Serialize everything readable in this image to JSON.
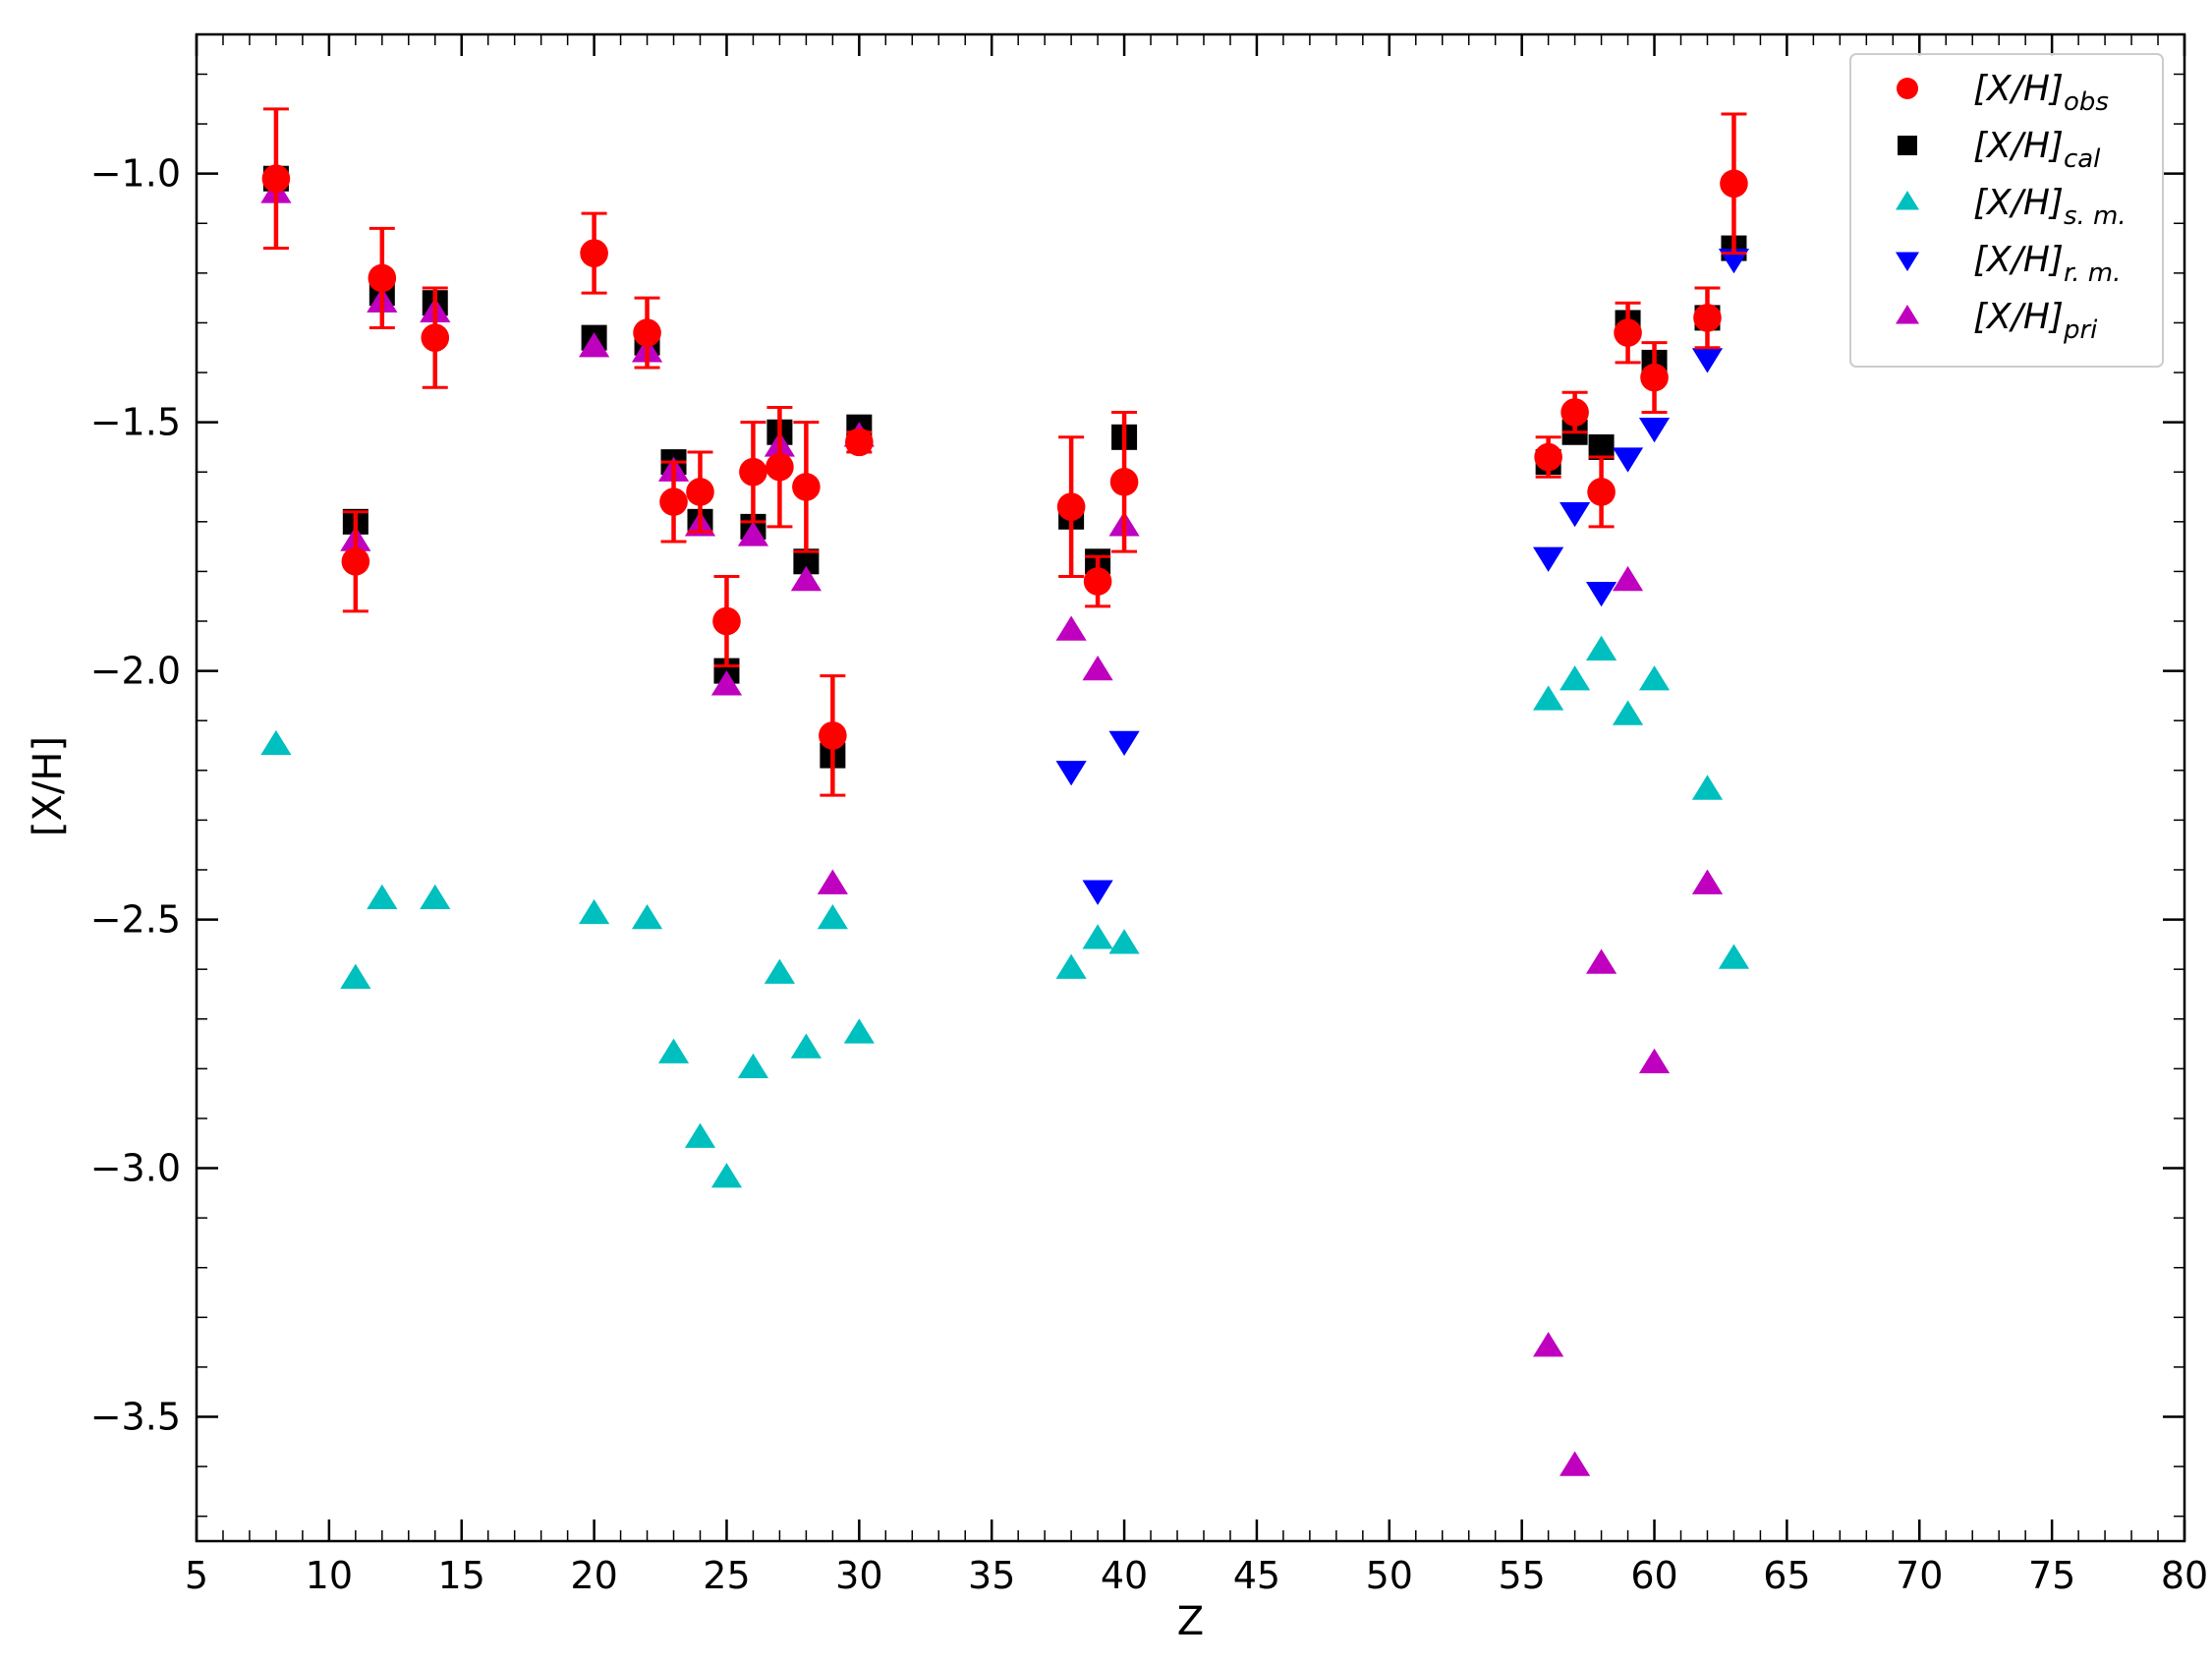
{
  "chart_data": {
    "type": "scatter",
    "xlabel": "Z",
    "ylabel": "[X/H]",
    "xlim": [
      5,
      80
    ],
    "ylim": [
      -3.75,
      -0.72
    ],
    "x_ticks": [
      5,
      10,
      15,
      20,
      25,
      30,
      35,
      40,
      45,
      50,
      55,
      60,
      65,
      70,
      75,
      80
    ],
    "y_ticks": [
      -1.0,
      -1.5,
      -2.0,
      -2.5,
      -3.0,
      -3.5
    ],
    "y_tick_labels": [
      "−1.0",
      "−1.5",
      "−2.0",
      "−2.5",
      "−3.0",
      "−3.5"
    ],
    "legend_position": "top-right",
    "grid": false,
    "series": [
      {
        "key": "cal",
        "name_main": "[X/H]",
        "name_sub": "cal",
        "marker": "square",
        "color": "#000000",
        "points": [
          [
            8,
            -1.01
          ],
          [
            11,
            -1.7
          ],
          [
            12,
            -1.24
          ],
          [
            14,
            -1.26
          ],
          [
            20,
            -1.33
          ],
          [
            22,
            -1.34
          ],
          [
            23,
            -1.58
          ],
          [
            24,
            -1.7
          ],
          [
            25,
            -2.0
          ],
          [
            26,
            -1.71
          ],
          [
            27,
            -1.52
          ],
          [
            28,
            -1.78
          ],
          [
            29,
            -2.17
          ],
          [
            30,
            -1.51
          ],
          [
            38,
            -1.69
          ],
          [
            39,
            -1.78
          ],
          [
            40,
            -1.53
          ],
          [
            56,
            -1.58
          ],
          [
            57,
            -1.52
          ],
          [
            58,
            -1.55
          ],
          [
            59,
            -1.3
          ],
          [
            60,
            -1.38
          ],
          [
            62,
            -1.29
          ],
          [
            63,
            -1.15
          ]
        ]
      },
      {
        "key": "sm",
        "name_main": "[X/H]",
        "name_sub": "s. m.",
        "marker": "triangle-up",
        "color": "#00bfbf",
        "points": [
          [
            8,
            -2.15
          ],
          [
            11,
            -2.62
          ],
          [
            12,
            -2.46
          ],
          [
            14,
            -2.46
          ],
          [
            20,
            -2.49
          ],
          [
            22,
            -2.5
          ],
          [
            23,
            -2.77
          ],
          [
            24,
            -2.94
          ],
          [
            25,
            -3.02
          ],
          [
            26,
            -2.8
          ],
          [
            27,
            -2.61
          ],
          [
            28,
            -2.76
          ],
          [
            29,
            -2.5
          ],
          [
            30,
            -2.73
          ],
          [
            38,
            -2.6
          ],
          [
            39,
            -2.54
          ],
          [
            40,
            -2.55
          ],
          [
            56,
            -2.06
          ],
          [
            57,
            -2.02
          ],
          [
            58,
            -1.96
          ],
          [
            59,
            -2.09
          ],
          [
            60,
            -2.02
          ],
          [
            62,
            -2.24
          ],
          [
            63,
            -2.58
          ]
        ]
      },
      {
        "key": "rm",
        "name_main": "[X/H]",
        "name_sub": "r. m.",
        "marker": "triangle-down",
        "color": "#0000ff",
        "points": [
          [
            38,
            -2.2
          ],
          [
            39,
            -2.44
          ],
          [
            40,
            -2.14
          ],
          [
            56,
            -1.77
          ],
          [
            57,
            -1.68
          ],
          [
            58,
            -1.84
          ],
          [
            59,
            -1.57
          ],
          [
            60,
            -1.51
          ],
          [
            62,
            -1.37
          ],
          [
            63,
            -1.17
          ]
        ]
      },
      {
        "key": "pri",
        "name_main": "[X/H]",
        "name_sub": "pri",
        "marker": "triangle-up",
        "color": "#bf00bf",
        "points": [
          [
            8,
            -1.04
          ],
          [
            11,
            -1.74
          ],
          [
            12,
            -1.26
          ],
          [
            14,
            -1.28
          ],
          [
            20,
            -1.35
          ],
          [
            22,
            -1.36
          ],
          [
            23,
            -1.6
          ],
          [
            24,
            -1.71
          ],
          [
            25,
            -2.03
          ],
          [
            26,
            -1.73
          ],
          [
            27,
            -1.55
          ],
          [
            28,
            -1.82
          ],
          [
            29,
            -2.43
          ],
          [
            30,
            -1.53
          ],
          [
            38,
            -1.92
          ],
          [
            39,
            -2.0
          ],
          [
            40,
            -1.71
          ],
          [
            56,
            -3.36
          ],
          [
            57,
            -3.6
          ],
          [
            58,
            -2.59
          ],
          [
            59,
            -1.82
          ],
          [
            60,
            -2.79
          ],
          [
            62,
            -2.43
          ]
        ]
      },
      {
        "key": "obs",
        "name_main": "[X/H]",
        "name_sub": "obs",
        "marker": "circle",
        "color": "#ff0000",
        "points": [
          [
            8,
            -1.01
          ],
          [
            11,
            -1.78
          ],
          [
            12,
            -1.21
          ],
          [
            14,
            -1.33
          ],
          [
            20,
            -1.16
          ],
          [
            22,
            -1.32
          ],
          [
            23,
            -1.66
          ],
          [
            24,
            -1.64
          ],
          [
            25,
            -1.9
          ],
          [
            26,
            -1.6
          ],
          [
            27,
            -1.59
          ],
          [
            28,
            -1.63
          ],
          [
            29,
            -2.13
          ],
          [
            30,
            -1.54
          ],
          [
            38,
            -1.67
          ],
          [
            39,
            -1.82
          ],
          [
            40,
            -1.62
          ],
          [
            56,
            -1.57
          ],
          [
            57,
            -1.48
          ],
          [
            58,
            -1.64
          ],
          [
            59,
            -1.32
          ],
          [
            60,
            -1.41
          ],
          [
            62,
            -1.29
          ],
          [
            63,
            -1.02
          ]
        ],
        "errors": [
          0.14,
          0.1,
          0.1,
          0.1,
          0.08,
          0.07,
          0.08,
          0.08,
          0.09,
          0.1,
          0.12,
          0.13,
          0.12,
          0.02,
          0.14,
          0.05,
          0.14,
          0.04,
          0.04,
          0.07,
          0.06,
          0.07,
          0.06,
          0.14
        ]
      }
    ],
    "legend_order": [
      "obs",
      "cal",
      "sm",
      "rm",
      "pri"
    ]
  }
}
